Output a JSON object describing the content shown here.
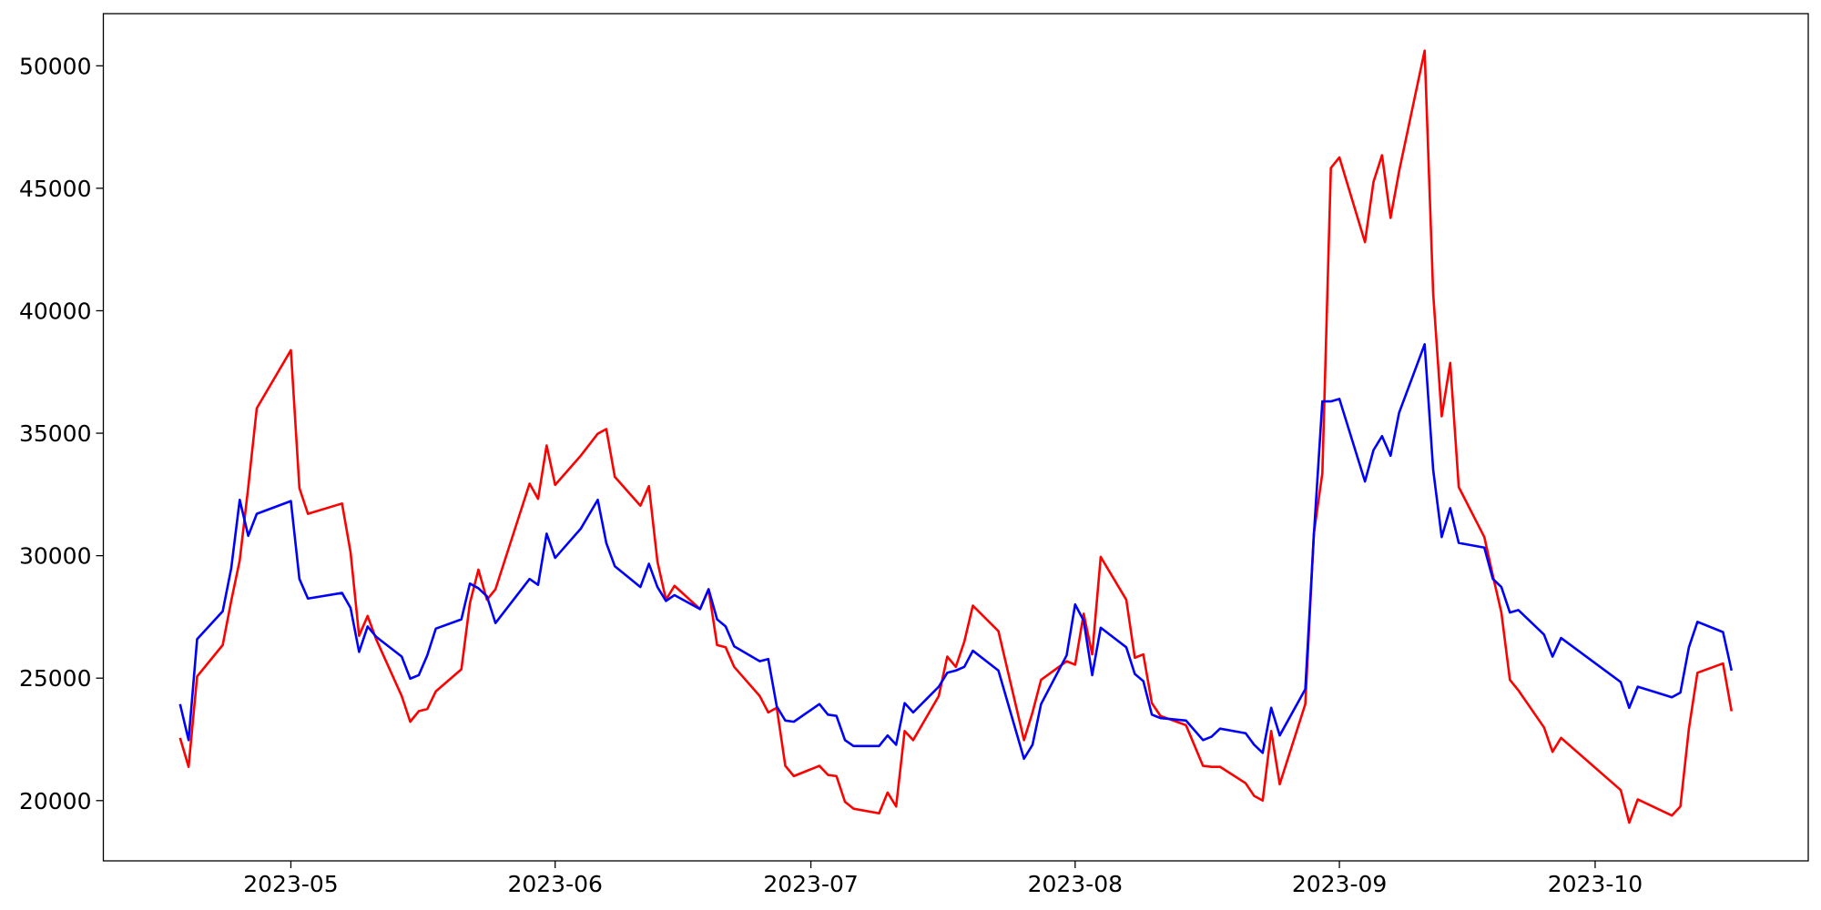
{
  "chart_data": {
    "type": "line",
    "x": [
      "2023-04-18",
      "2023-04-19",
      "2023-04-20",
      "2023-04-23",
      "2023-04-24",
      "2023-04-25",
      "2023-04-26",
      "2023-04-27",
      "2023-05-01",
      "2023-05-02",
      "2023-05-03",
      "2023-05-07",
      "2023-05-08",
      "2023-05-09",
      "2023-05-10",
      "2023-05-11",
      "2023-05-14",
      "2023-05-15",
      "2023-05-16",
      "2023-05-17",
      "2023-05-18",
      "2023-05-21",
      "2023-05-22",
      "2023-05-23",
      "2023-05-24",
      "2023-05-25",
      "2023-05-29",
      "2023-05-30",
      "2023-05-31",
      "2023-06-01",
      "2023-06-04",
      "2023-06-06",
      "2023-06-07",
      "2023-06-08",
      "2023-06-11",
      "2023-06-12",
      "2023-06-13",
      "2023-06-14",
      "2023-06-15",
      "2023-06-18",
      "2023-06-19",
      "2023-06-20",
      "2023-06-21",
      "2023-06-22",
      "2023-06-25",
      "2023-06-26",
      "2023-06-27",
      "2023-06-28",
      "2023-06-29",
      "2023-07-02",
      "2023-07-03",
      "2023-07-04",
      "2023-07-05",
      "2023-07-06",
      "2023-07-09",
      "2023-07-10",
      "2023-07-11",
      "2023-07-12",
      "2023-07-13",
      "2023-07-16",
      "2023-07-17",
      "2023-07-18",
      "2023-07-19",
      "2023-07-20",
      "2023-07-23",
      "2023-07-26",
      "2023-07-27",
      "2023-07-28",
      "2023-07-31",
      "2023-08-01",
      "2023-08-02",
      "2023-08-03",
      "2023-08-04",
      "2023-08-07",
      "2023-08-08",
      "2023-08-09",
      "2023-08-10",
      "2023-08-11",
      "2023-08-14",
      "2023-08-16",
      "2023-08-17",
      "2023-08-18",
      "2023-08-21",
      "2023-08-22",
      "2023-08-23",
      "2023-08-24",
      "2023-08-25",
      "2023-08-28",
      "2023-08-29",
      "2023-08-30",
      "2023-08-31",
      "2023-09-01",
      "2023-09-04",
      "2023-09-05",
      "2023-09-06",
      "2023-09-07",
      "2023-09-08",
      "2023-09-11",
      "2023-09-12",
      "2023-09-13",
      "2023-09-14",
      "2023-09-15",
      "2023-09-18",
      "2023-09-19",
      "2023-09-20",
      "2023-09-21",
      "2023-09-22",
      "2023-09-25",
      "2023-09-26",
      "2023-09-27",
      "2023-10-04",
      "2023-10-05",
      "2023-10-06",
      "2023-10-10",
      "2023-10-11",
      "2023-10-12",
      "2023-10-13",
      "2023-10-16",
      "2023-10-17"
    ],
    "series": [
      {
        "color": "#ff0000",
        "values": [
          22560,
          21380,
          25070,
          26350,
          28150,
          29810,
          32800,
          36020,
          38390,
          32760,
          31710,
          32130,
          30140,
          26730,
          27540,
          26590,
          24270,
          23220,
          23650,
          23740,
          24460,
          25360,
          28060,
          29430,
          28200,
          28630,
          32940,
          32320,
          34500,
          32890,
          34080,
          34980,
          35170,
          33220,
          32040,
          32840,
          29760,
          28200,
          28770,
          27820,
          28630,
          26350,
          26260,
          25460,
          24270,
          23600,
          23790,
          21420,
          21000,
          21420,
          21050,
          21000,
          19950,
          19670,
          19480,
          20330,
          19760,
          22840,
          22470,
          24270,
          25880,
          25460,
          26490,
          27960,
          26920,
          22470,
          23600,
          24930,
          25690,
          25550,
          27630,
          25970,
          29950,
          28200,
          25830,
          25970,
          23980,
          23460,
          23080,
          21420,
          21380,
          21380,
          20710,
          20190,
          20000,
          22840,
          20670,
          23940,
          30900,
          33370,
          45830,
          46260,
          42800,
          45260,
          46350,
          43790,
          45690,
          50620,
          40710,
          35690,
          37870,
          32800,
          30760,
          29190,
          27680,
          24930,
          24500,
          22990,
          21990,
          22560,
          20430,
          19100,
          20050,
          19390,
          19760,
          22940,
          25220,
          25600,
          23650
        ]
      },
      {
        "color": "#0000ff",
        "values": [
          23940,
          22470,
          26590,
          27730,
          29480,
          32280,
          30810,
          31710,
          32230,
          29050,
          28250,
          28480,
          27870,
          26070,
          27110,
          26690,
          25880,
          24980,
          25120,
          25930,
          27020,
          27400,
          28860,
          28670,
          28340,
          27250,
          29050,
          28810,
          30900,
          29910,
          31100,
          32280,
          30520,
          29570,
          28720,
          29670,
          28720,
          28150,
          28390,
          27820,
          28630,
          27400,
          27110,
          26300,
          25690,
          25780,
          23840,
          23270,
          23220,
          23940,
          23510,
          23460,
          22470,
          22230,
          22230,
          22660,
          22280,
          23980,
          23600,
          24650,
          25220,
          25310,
          25460,
          26120,
          25310,
          21710,
          22280,
          23940,
          25930,
          28010,
          27350,
          25120,
          27060,
          26260,
          25170,
          24880,
          23510,
          23370,
          23270,
          22470,
          22610,
          22940,
          22750,
          22280,
          21950,
          23790,
          22660,
          24550,
          30810,
          36300,
          36300,
          36400,
          33030,
          34310,
          34880,
          34080,
          35830,
          38630,
          33510,
          30760,
          31940,
          30520,
          30330,
          29050,
          28720,
          27680,
          27780,
          26780,
          25880,
          26640,
          24840,
          23790,
          24650,
          24220,
          24410,
          26260,
          27300,
          26880,
          25310
        ]
      }
    ],
    "xlim": [
      "2023-04-09",
      "2023-10-26"
    ],
    "xticks": [
      {
        "value": "2023-05-01",
        "label": "2023-05"
      },
      {
        "value": "2023-06-01",
        "label": "2023-06"
      },
      {
        "value": "2023-07-01",
        "label": "2023-07"
      },
      {
        "value": "2023-08-01",
        "label": "2023-08"
      },
      {
        "value": "2023-09-01",
        "label": "2023-09"
      },
      {
        "value": "2023-10-01",
        "label": "2023-10"
      }
    ],
    "ylim": [
      17540,
      52130
    ],
    "yticks": [
      20000,
      25000,
      30000,
      35000,
      40000,
      45000,
      50000
    ],
    "grid": false
  }
}
